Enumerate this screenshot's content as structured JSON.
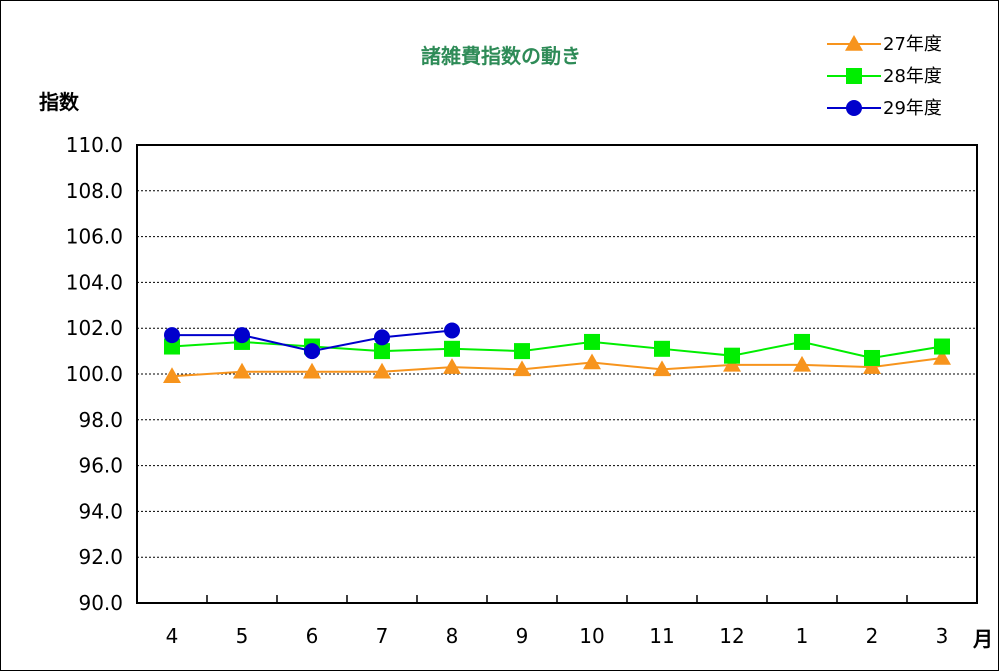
{
  "chart_data": {
    "type": "line",
    "title": "諸雑費指数の動き",
    "ylabel": "指数",
    "xlabel": "月",
    "categories": [
      "4",
      "5",
      "6",
      "7",
      "8",
      "9",
      "10",
      "11",
      "12",
      "1",
      "2",
      "3"
    ],
    "ylim": [
      90.0,
      110.0
    ],
    "yticks": [
      "110.0",
      "108.0",
      "106.0",
      "104.0",
      "102.0",
      "100.0",
      "98.0",
      "96.0",
      "94.0",
      "92.0",
      "90.0"
    ],
    "grid": true,
    "legend_position": "top-right",
    "series": [
      {
        "name": "27年度",
        "marker": "triangle",
        "color": "#f7941d",
        "values": [
          99.9,
          100.1,
          100.1,
          100.1,
          100.3,
          100.2,
          100.5,
          100.2,
          100.4,
          100.4,
          100.3,
          100.7
        ]
      },
      {
        "name": "28年度",
        "marker": "square",
        "color": "#00ee00",
        "values": [
          101.2,
          101.4,
          101.2,
          101.0,
          101.1,
          101.0,
          101.4,
          101.1,
          100.8,
          101.4,
          100.7,
          101.2
        ]
      },
      {
        "name": "29年度",
        "marker": "circle",
        "color": "#0000cc",
        "values": [
          101.7,
          101.7,
          101.0,
          101.6,
          101.9,
          null,
          null,
          null,
          null,
          null,
          null,
          null
        ]
      }
    ]
  }
}
